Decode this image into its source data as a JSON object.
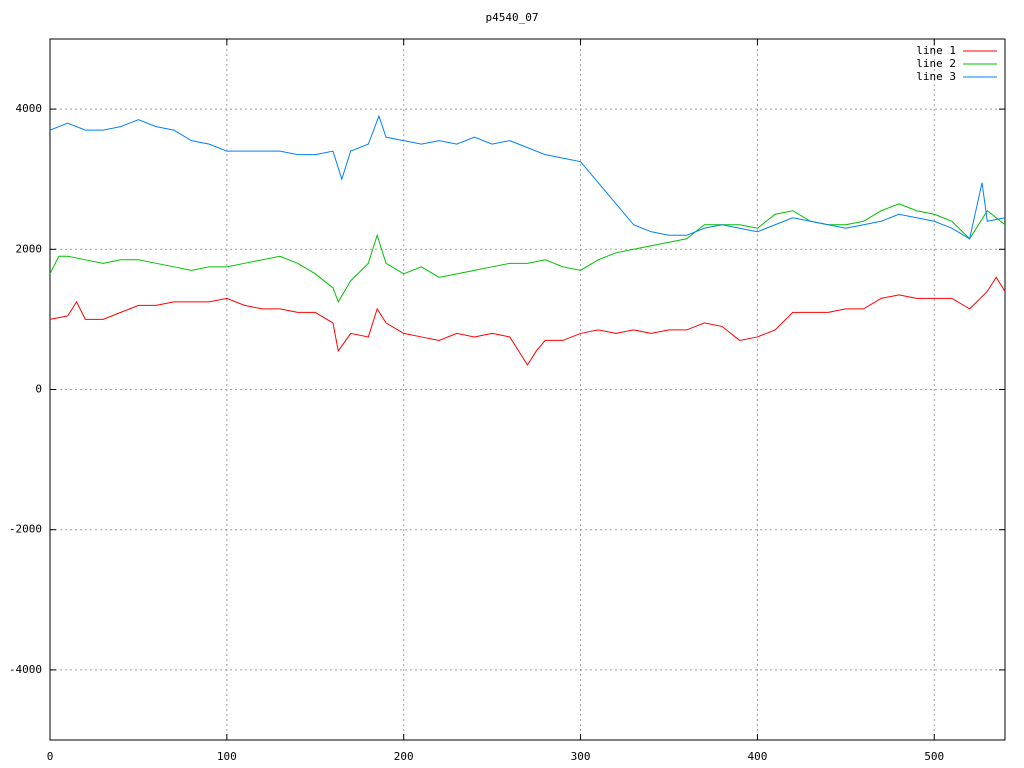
{
  "chart_data": {
    "type": "line",
    "title": "p4540_07",
    "xlim": [
      0,
      540
    ],
    "ylim": [
      -5000,
      5000
    ],
    "xticks": [
      0,
      100,
      200,
      300,
      400,
      500
    ],
    "yticks": [
      -4000,
      -2000,
      0,
      2000,
      4000
    ],
    "grid": true,
    "legend": "top-right",
    "series": [
      {
        "name": "line 1",
        "color": "#ff0000",
        "x": [
          0,
          10,
          15,
          20,
          30,
          40,
          50,
          60,
          70,
          80,
          90,
          100,
          110,
          120,
          130,
          140,
          150,
          160,
          163,
          170,
          180,
          185,
          190,
          200,
          210,
          220,
          230,
          240,
          250,
          260,
          270,
          275,
          280,
          290,
          300,
          310,
          320,
          330,
          340,
          350,
          360,
          370,
          380,
          390,
          400,
          410,
          420,
          430,
          440,
          450,
          460,
          470,
          480,
          490,
          500,
          510,
          520,
          530,
          535,
          540
        ],
        "values": [
          1000,
          1050,
          1250,
          1000,
          1000,
          1100,
          1200,
          1200,
          1250,
          1250,
          1250,
          1300,
          1200,
          1150,
          1150,
          1100,
          1100,
          950,
          550,
          800,
          750,
          1150,
          950,
          800,
          750,
          700,
          800,
          750,
          800,
          750,
          350,
          550,
          700,
          700,
          800,
          850,
          800,
          850,
          800,
          850,
          850,
          950,
          900,
          700,
          750,
          850,
          1100,
          1100,
          1100,
          1150,
          1150,
          1300,
          1350,
          1300,
          1300,
          1300,
          1150,
          1400,
          1600,
          1400
        ]
      },
      {
        "name": "line 2",
        "color": "#00c000",
        "x": [
          0,
          5,
          10,
          20,
          30,
          40,
          50,
          60,
          70,
          80,
          90,
          100,
          110,
          120,
          130,
          140,
          150,
          160,
          163,
          170,
          180,
          185,
          190,
          200,
          210,
          220,
          230,
          240,
          250,
          260,
          270,
          280,
          290,
          300,
          310,
          320,
          330,
          340,
          350,
          360,
          370,
          380,
          390,
          400,
          410,
          420,
          430,
          440,
          450,
          460,
          470,
          480,
          490,
          500,
          510,
          520,
          530,
          540
        ],
        "values": [
          1650,
          1900,
          1900,
          1850,
          1800,
          1850,
          1850,
          1800,
          1750,
          1700,
          1750,
          1750,
          1800,
          1850,
          1900,
          1800,
          1650,
          1450,
          1250,
          1550,
          1800,
          2200,
          1800,
          1650,
          1750,
          1600,
          1650,
          1700,
          1750,
          1800,
          1800,
          1850,
          1750,
          1700,
          1850,
          1950,
          2000,
          2050,
          2100,
          2150,
          2350,
          2350,
          2350,
          2300,
          2500,
          2550,
          2400,
          2350,
          2350,
          2400,
          2550,
          2650,
          2550,
          2500,
          2400,
          2150,
          2550,
          2350
        ]
      },
      {
        "name": "line 3",
        "color": "#0080ff",
        "x": [
          0,
          10,
          20,
          30,
          40,
          50,
          60,
          70,
          80,
          90,
          100,
          110,
          120,
          130,
          140,
          150,
          160,
          165,
          170,
          180,
          186,
          190,
          200,
          210,
          220,
          230,
          240,
          250,
          260,
          270,
          280,
          290,
          300,
          310,
          320,
          330,
          340,
          350,
          360,
          370,
          380,
          390,
          400,
          410,
          420,
          430,
          440,
          450,
          460,
          470,
          480,
          490,
          500,
          510,
          520,
          527,
          530,
          540
        ],
        "values": [
          3700,
          3800,
          3700,
          3700,
          3750,
          3850,
          3750,
          3700,
          3550,
          3500,
          3400,
          3400,
          3400,
          3400,
          3350,
          3350,
          3400,
          3000,
          3400,
          3500,
          3900,
          3600,
          3550,
          3500,
          3550,
          3500,
          3600,
          3500,
          3550,
          3450,
          3350,
          3300,
          3250,
          2950,
          2650,
          2350,
          2250,
          2200,
          2200,
          2300,
          2350,
          2300,
          2250,
          2350,
          2450,
          2400,
          2350,
          2300,
          2350,
          2400,
          2500,
          2450,
          2400,
          2300,
          2150,
          2950,
          2400,
          2450
        ]
      }
    ]
  }
}
